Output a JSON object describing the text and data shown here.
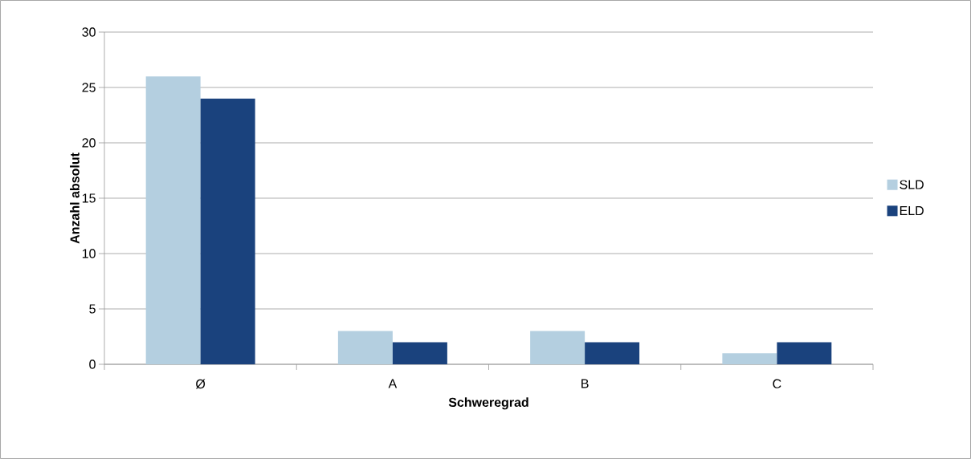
{
  "chart_data": {
    "type": "bar",
    "xlabel": "Schweregrad",
    "ylabel": "Anzahl absolut",
    "categories": [
      "Ø",
      "A",
      "B",
      "C"
    ],
    "series": [
      {
        "name": "SLD",
        "color": "#b4cfe0",
        "values": [
          26,
          3,
          3,
          1
        ]
      },
      {
        "name": "ELD",
        "color": "#1a427d",
        "values": [
          24,
          2,
          2,
          2
        ]
      }
    ],
    "ylim": [
      0,
      30
    ],
    "yticks": [
      0,
      5,
      10,
      15,
      20,
      25,
      30
    ],
    "grid": "y",
    "legend": "right"
  }
}
